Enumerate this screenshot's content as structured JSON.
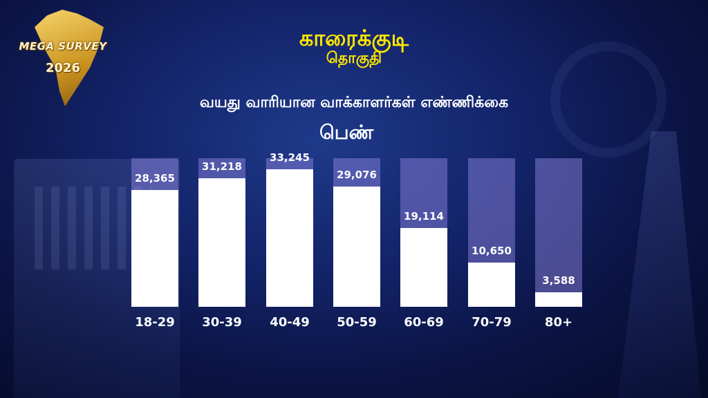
{
  "logo": {
    "text": "MEGA SURVEY",
    "year": "2026"
  },
  "header": {
    "title": "காரைக்குடி",
    "subtitle": "தொகுதி"
  },
  "chart_subtitle": "வயது வாரியான வாக்காளர்கள் எண்ணிக்கை",
  "gender_label": "பெண்",
  "colors": {
    "title": "#ffe600",
    "bar_fill": "#ffffff",
    "bar_track": "#8f85d8"
  },
  "chart_data": {
    "type": "bar",
    "title": "வயது வாரியான வாக்காளர்கள் எண்ணிக்கை",
    "categories": [
      "18-29",
      "30-39",
      "40-49",
      "50-59",
      "60-69",
      "70-79",
      "80+"
    ],
    "values": [
      28365,
      31218,
      33245,
      29076,
      19114,
      10650,
      3588
    ],
    "value_labels": [
      "28,365",
      "31,218",
      "33,245",
      "29,076",
      "19,114",
      "10,650",
      "3,588"
    ],
    "ylim": [
      0,
      36000
    ],
    "grid": false,
    "legend": "none"
  }
}
